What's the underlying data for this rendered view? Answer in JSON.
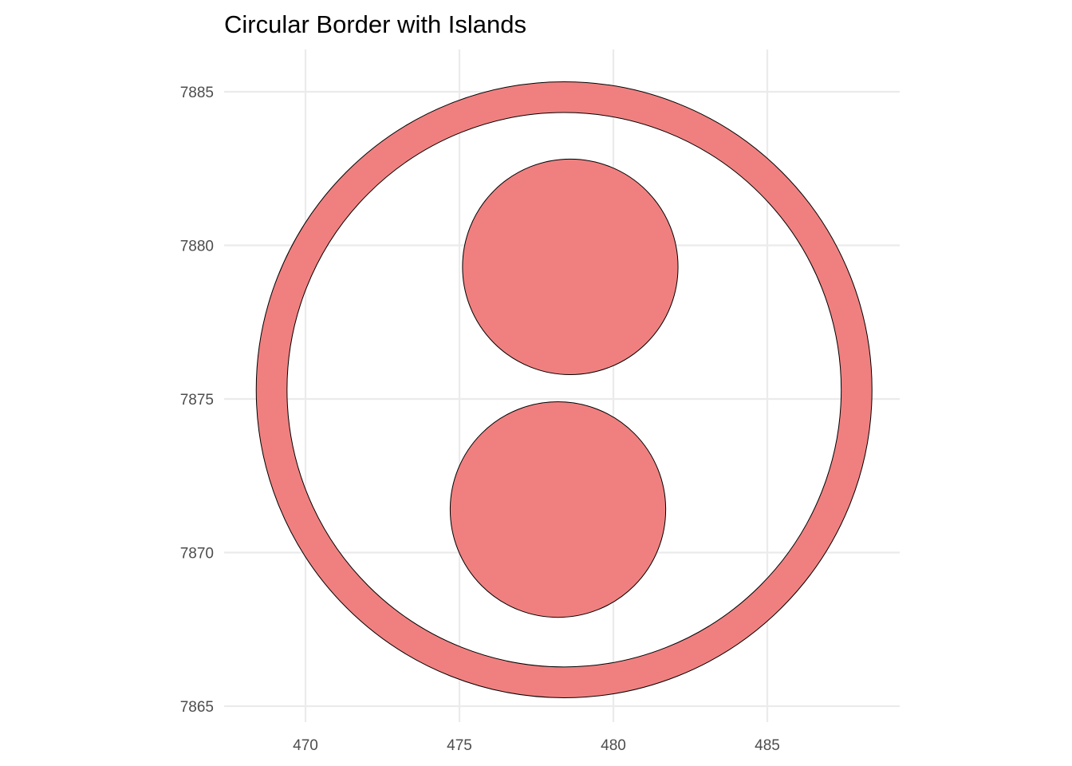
{
  "chart_data": {
    "type": "map",
    "title": "Circular Border with Islands",
    "xlabel": "",
    "ylabel": "",
    "xlim": [
      467.5,
      489.3
    ],
    "ylim": [
      7864.8,
      7886.3
    ],
    "x_ticks": [
      470,
      475,
      480,
      485
    ],
    "y_ticks": [
      7865,
      7870,
      7875,
      7880,
      7885
    ],
    "grid": true,
    "fill_color": "#f08080",
    "stroke_color": "#000000",
    "grid_color": "#ebebeb",
    "shapes": [
      {
        "name": "border-ring",
        "kind": "ring",
        "center": [
          478.4,
          7875.3
        ],
        "outer_radius": 10.0,
        "inner_radius": 9.0
      },
      {
        "name": "island-north",
        "kind": "circle",
        "center": [
          478.6,
          7879.3
        ],
        "radius": 3.5
      },
      {
        "name": "island-south",
        "kind": "circle",
        "center": [
          478.2,
          7871.4
        ],
        "radius": 3.5
      }
    ]
  }
}
